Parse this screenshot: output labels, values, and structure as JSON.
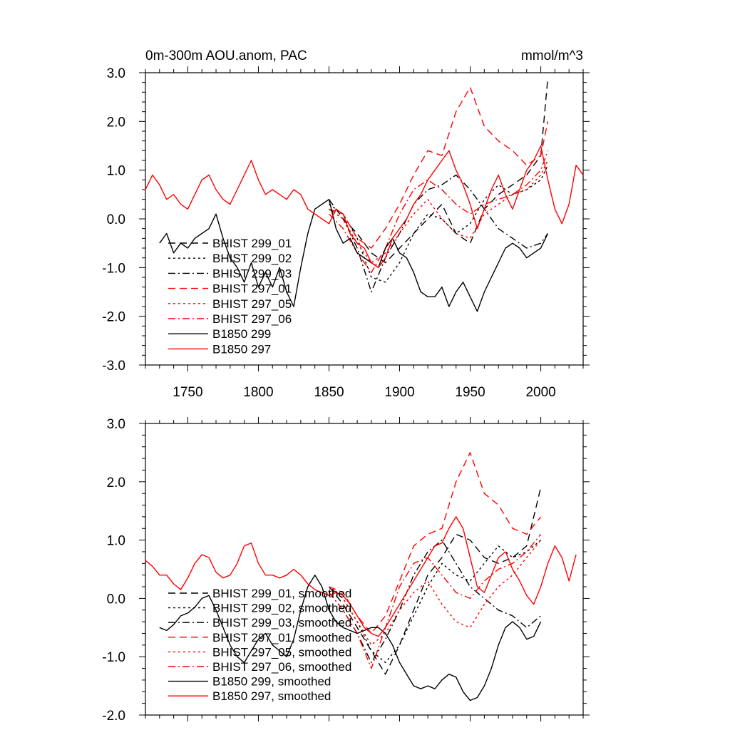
{
  "chart_data": [
    {
      "type": "line",
      "title": "0m-300m AOU.anom, PAC",
      "units_label": "mmol/m^3",
      "xlim": [
        1720,
        2030
      ],
      "ylim": [
        -3.0,
        3.0
      ],
      "xticks": [
        1750,
        1800,
        1850,
        1900,
        1950,
        2000
      ],
      "xtick_labels": [
        "1750",
        "1800",
        "1850",
        "1900",
        "1950",
        "2000"
      ],
      "yticks": [
        -3.0,
        -2.0,
        -1.0,
        0.0,
        1.0,
        2.0,
        3.0
      ],
      "ytick_labels": [
        "-3.0",
        "-2.0",
        "-1.0",
        "0.0",
        "1.0",
        "2.0",
        "3.0"
      ],
      "legend_placement": "lower-left",
      "series": [
        {
          "name": "BHIST 299_01",
          "color": "#000000",
          "dash": "dash",
          "x": [
            1850,
            1860,
            1870,
            1880,
            1890,
            1900,
            1910,
            1920,
            1930,
            1940,
            1950,
            1960,
            1970,
            1980,
            1990,
            2000,
            2005
          ],
          "y": [
            0.4,
            0.0,
            -0.3,
            -0.7,
            -0.9,
            -0.6,
            -0.3,
            0.0,
            0.3,
            -0.3,
            -0.5,
            0.2,
            0.5,
            0.7,
            0.9,
            1.3,
            2.9
          ]
        },
        {
          "name": "BHIST 299_02",
          "color": "#000000",
          "dash": "dot",
          "x": [
            1850,
            1860,
            1870,
            1880,
            1890,
            1900,
            1910,
            1920,
            1930,
            1940,
            1950,
            1960,
            1970,
            1980,
            1990,
            2000,
            2005
          ],
          "y": [
            0.3,
            0.1,
            -0.4,
            -1.2,
            -1.3,
            -0.9,
            -0.3,
            0.1,
            0.0,
            -0.3,
            -0.1,
            0.4,
            0.7,
            0.5,
            0.6,
            0.8,
            1.1
          ]
        },
        {
          "name": "BHIST 299_03",
          "color": "#000000",
          "dash": "dashdot",
          "x": [
            1850,
            1860,
            1870,
            1880,
            1890,
            1900,
            1910,
            1920,
            1930,
            1940,
            1950,
            1960,
            1970,
            1980,
            1990,
            2000,
            2005
          ],
          "y": [
            0.2,
            0.0,
            -0.6,
            -1.5,
            -0.8,
            -0.3,
            0.3,
            0.6,
            0.7,
            0.9,
            0.6,
            0.2,
            -0.2,
            -0.4,
            -0.6,
            -0.5,
            -0.3
          ]
        },
        {
          "name": "BHIST 297_01",
          "color": "#ff0000",
          "dash": "dash",
          "x": [
            1850,
            1860,
            1870,
            1880,
            1890,
            1900,
            1910,
            1920,
            1930,
            1940,
            1950,
            1960,
            1970,
            1980,
            1990,
            2000,
            2005
          ],
          "y": [
            0.2,
            0.1,
            -0.4,
            -0.6,
            -0.2,
            0.3,
            0.9,
            1.4,
            1.3,
            2.2,
            2.7,
            1.9,
            1.6,
            1.4,
            1.1,
            1.3,
            2.0
          ]
        },
        {
          "name": "BHIST 297_05",
          "color": "#ff0000",
          "dash": "dot",
          "x": [
            1850,
            1860,
            1870,
            1880,
            1890,
            1900,
            1910,
            1920,
            1930,
            1940,
            1950,
            1960,
            1970,
            1980,
            1990,
            2000,
            2005
          ],
          "y": [
            0.2,
            0.0,
            -0.5,
            -0.9,
            -0.7,
            -0.3,
            0.1,
            0.4,
            0.0,
            -0.3,
            -0.4,
            0.1,
            0.3,
            0.5,
            0.6,
            0.9,
            1.2
          ]
        },
        {
          "name": "BHIST 297_06",
          "color": "#ff0000",
          "dash": "dashdot",
          "x": [
            1850,
            1860,
            1870,
            1880,
            1890,
            1900,
            1910,
            1920,
            1930,
            1940,
            1950,
            1960,
            1970,
            1980,
            1990,
            2000,
            2005
          ],
          "y": [
            0.1,
            -0.2,
            -0.7,
            -1.1,
            -0.6,
            0.1,
            0.6,
            0.8,
            0.6,
            0.3,
            0.1,
            0.3,
            0.4,
            0.5,
            0.7,
            1.0,
            1.4
          ]
        },
        {
          "name": "B1850 299",
          "color": "#000000",
          "dash": "solid",
          "x": [
            1730,
            1735,
            1740,
            1745,
            1750,
            1755,
            1760,
            1765,
            1770,
            1775,
            1780,
            1785,
            1790,
            1795,
            1800,
            1805,
            1810,
            1815,
            1820,
            1825,
            1830,
            1835,
            1840,
            1845,
            1850,
            1855,
            1860,
            1865,
            1870,
            1875,
            1880,
            1885,
            1890,
            1895,
            1900,
            1905,
            1910,
            1915,
            1920,
            1925,
            1930,
            1935,
            1940,
            1945,
            1950,
            1955,
            1960,
            1965,
            1970,
            1975,
            1980,
            1985,
            1990,
            1995,
            2000,
            2005
          ],
          "y": [
            -0.5,
            -0.3,
            -0.7,
            -0.5,
            -0.6,
            -0.4,
            -0.3,
            -0.2,
            0.1,
            -0.4,
            -0.8,
            -1.0,
            -1.3,
            -0.9,
            -1.4,
            -1.1,
            -1.4,
            -1.0,
            -1.5,
            -1.8,
            -1.0,
            -0.3,
            0.2,
            0.3,
            0.4,
            -0.2,
            -0.5,
            -0.4,
            -0.7,
            -0.8,
            -0.9,
            -1.0,
            -0.6,
            -0.4,
            -0.7,
            -0.8,
            -1.1,
            -1.5,
            -1.6,
            -1.6,
            -1.4,
            -1.8,
            -1.5,
            -1.3,
            -1.6,
            -1.9,
            -1.5,
            -1.2,
            -0.9,
            -0.6,
            -0.5,
            -0.6,
            -0.8,
            -0.7,
            -0.6,
            -0.3
          ]
        },
        {
          "name": "B1850 297",
          "color": "#ff0000",
          "dash": "solid",
          "x": [
            1720,
            1725,
            1730,
            1735,
            1740,
            1745,
            1750,
            1755,
            1760,
            1765,
            1770,
            1775,
            1780,
            1785,
            1790,
            1795,
            1800,
            1805,
            1810,
            1815,
            1820,
            1825,
            1830,
            1835,
            1840,
            1845,
            1850,
            1855,
            1860,
            1865,
            1870,
            1875,
            1880,
            1885,
            1890,
            1895,
            1900,
            1905,
            1910,
            1915,
            1920,
            1925,
            1930,
            1935,
            1940,
            1945,
            1950,
            1955,
            1960,
            1965,
            1970,
            1975,
            1980,
            1985,
            1990,
            1995,
            2000,
            2005,
            2010,
            2015,
            2020,
            2025,
            2030
          ],
          "y": [
            0.6,
            0.9,
            0.7,
            0.4,
            0.5,
            0.3,
            0.2,
            0.5,
            0.8,
            0.9,
            0.6,
            0.4,
            0.3,
            0.6,
            0.9,
            1.2,
            0.8,
            0.5,
            0.6,
            0.5,
            0.4,
            0.6,
            0.5,
            0.2,
            0.1,
            0.0,
            -0.1,
            0.2,
            0.1,
            -0.3,
            -0.5,
            -0.6,
            -0.9,
            -1.0,
            -0.8,
            -0.4,
            -0.2,
            0.0,
            0.3,
            0.5,
            0.8,
            1.0,
            1.2,
            1.4,
            1.0,
            0.7,
            0.3,
            -0.2,
            0.2,
            0.6,
            0.9,
            0.5,
            0.2,
            0.6,
            1.0,
            1.2,
            1.5,
            0.8,
            0.2,
            -0.1,
            0.3,
            1.1,
            0.9
          ]
        }
      ]
    },
    {
      "type": "line",
      "xlim": [
        1720,
        2030
      ],
      "ylim": [
        -2.0,
        3.0
      ],
      "xticks": [
        1750,
        1800,
        1850,
        1900,
        1950,
        2000
      ],
      "yticks": [
        -2.0,
        -1.0,
        0.0,
        1.0,
        2.0,
        3.0
      ],
      "ytick_labels": [
        "-2.0",
        "-1.0",
        "0.0",
        "1.0",
        "2.0",
        "3.0"
      ],
      "legend_placement": "lower-left",
      "series": [
        {
          "name": "BHIST 299_01, smoothed",
          "color": "#000000",
          "dash": "dash",
          "x": [
            1850,
            1860,
            1870,
            1880,
            1890,
            1900,
            1910,
            1920,
            1930,
            1940,
            1950,
            1960,
            1970,
            1980,
            1990,
            2000
          ],
          "y": [
            0.2,
            -0.1,
            -0.5,
            -0.9,
            -1.3,
            -0.8,
            -0.2,
            0.4,
            0.7,
            1.1,
            1.0,
            0.7,
            0.6,
            0.7,
            0.9,
            1.9
          ]
        },
        {
          "name": "BHIST 299_02, smoothed",
          "color": "#000000",
          "dash": "dot",
          "x": [
            1850,
            1860,
            1870,
            1880,
            1890,
            1900,
            1910,
            1920,
            1930,
            1940,
            1950,
            1960,
            1970,
            1980,
            1990,
            2000
          ],
          "y": [
            0.2,
            0.0,
            -0.4,
            -0.9,
            -1.1,
            -0.8,
            -0.3,
            0.2,
            0.6,
            0.4,
            0.3,
            0.6,
            0.9,
            0.7,
            0.8,
            1.0
          ]
        },
        {
          "name": "BHIST 299_03, smoothed",
          "color": "#000000",
          "dash": "dashdot",
          "x": [
            1850,
            1860,
            1870,
            1880,
            1890,
            1900,
            1910,
            1920,
            1930,
            1940,
            1950,
            1960,
            1970,
            1980,
            1990,
            2000
          ],
          "y": [
            0.1,
            -0.2,
            -0.6,
            -1.1,
            -0.7,
            -0.2,
            0.4,
            0.8,
            1.0,
            0.6,
            0.2,
            0.0,
            -0.2,
            -0.3,
            -0.5,
            -0.3
          ]
        },
        {
          "name": "BHIST 297_01, smoothed",
          "color": "#ff0000",
          "dash": "dash",
          "x": [
            1850,
            1860,
            1870,
            1880,
            1890,
            1900,
            1910,
            1920,
            1930,
            1940,
            1950,
            1960,
            1970,
            1980,
            1990,
            2000
          ],
          "y": [
            0.2,
            0.1,
            -0.3,
            -0.6,
            -0.3,
            0.3,
            0.9,
            1.1,
            1.2,
            2.0,
            2.5,
            1.8,
            1.6,
            1.2,
            1.1,
            1.4
          ]
        },
        {
          "name": "BHIST 297_05, smoothed",
          "color": "#ff0000",
          "dash": "dot",
          "x": [
            1850,
            1860,
            1870,
            1880,
            1890,
            1900,
            1910,
            1920,
            1930,
            1940,
            1950,
            1960,
            1970,
            1980,
            1990,
            2000
          ],
          "y": [
            0.2,
            0.0,
            -0.4,
            -0.8,
            -0.6,
            -0.2,
            0.1,
            0.3,
            -0.1,
            -0.4,
            -0.5,
            -0.1,
            0.2,
            0.4,
            0.7,
            1.0
          ]
        },
        {
          "name": "BHIST 297_06, smoothed",
          "color": "#ff0000",
          "dash": "dashdot",
          "x": [
            1850,
            1860,
            1870,
            1880,
            1890,
            1900,
            1910,
            1920,
            1930,
            1940,
            1950,
            1960,
            1970,
            1980,
            1990,
            2000
          ],
          "y": [
            0.1,
            -0.2,
            -0.6,
            -1.2,
            -0.5,
            0.2,
            0.6,
            0.7,
            0.4,
            0.1,
            0.0,
            0.3,
            0.5,
            0.6,
            0.8,
            1.1
          ]
        },
        {
          "name": "B1850 299, smoothed",
          "color": "#000000",
          "dash": "solid",
          "x": [
            1730,
            1735,
            1740,
            1745,
            1750,
            1755,
            1760,
            1765,
            1770,
            1775,
            1780,
            1785,
            1790,
            1795,
            1800,
            1805,
            1810,
            1815,
            1820,
            1825,
            1830,
            1835,
            1840,
            1845,
            1850,
            1855,
            1860,
            1865,
            1870,
            1875,
            1880,
            1885,
            1890,
            1895,
            1900,
            1905,
            1910,
            1915,
            1920,
            1925,
            1930,
            1935,
            1940,
            1945,
            1950,
            1955,
            1960,
            1965,
            1970,
            1975,
            1980,
            1985,
            1990,
            1995,
            2000
          ],
          "y": [
            -0.5,
            -0.55,
            -0.45,
            -0.3,
            -0.25,
            -0.15,
            0.0,
            0.05,
            -0.2,
            -0.5,
            -0.8,
            -1.0,
            -1.1,
            -0.9,
            -0.7,
            -0.6,
            -0.8,
            -0.9,
            -1.0,
            -0.7,
            -0.2,
            0.2,
            0.4,
            0.2,
            -0.2,
            -0.4,
            -0.5,
            -0.55,
            -0.6,
            -0.55,
            -0.5,
            -0.5,
            -0.6,
            -0.8,
            -1.1,
            -1.3,
            -1.5,
            -1.55,
            -1.5,
            -1.55,
            -1.4,
            -1.3,
            -1.35,
            -1.6,
            -1.75,
            -1.7,
            -1.5,
            -1.2,
            -0.8,
            -0.5,
            -0.4,
            -0.5,
            -0.7,
            -0.65,
            -0.4
          ]
        },
        {
          "name": "B1850 297, smoothed",
          "color": "#ff0000",
          "dash": "solid",
          "x": [
            1720,
            1725,
            1730,
            1735,
            1740,
            1745,
            1750,
            1755,
            1760,
            1765,
            1770,
            1775,
            1780,
            1785,
            1790,
            1795,
            1800,
            1805,
            1810,
            1815,
            1820,
            1825,
            1830,
            1835,
            1840,
            1845,
            1850,
            1855,
            1860,
            1865,
            1870,
            1875,
            1880,
            1885,
            1890,
            1895,
            1900,
            1905,
            1910,
            1915,
            1920,
            1925,
            1930,
            1935,
            1940,
            1945,
            1950,
            1955,
            1960,
            1965,
            1970,
            1975,
            1980,
            1985,
            1990,
            1995,
            2000,
            2005,
            2010,
            2015,
            2020,
            2025
          ],
          "y": [
            0.65,
            0.55,
            0.4,
            0.4,
            0.25,
            0.15,
            0.35,
            0.6,
            0.75,
            0.7,
            0.45,
            0.35,
            0.4,
            0.6,
            0.9,
            0.95,
            0.6,
            0.4,
            0.4,
            0.35,
            0.4,
            0.5,
            0.4,
            0.25,
            0.15,
            0.1,
            0.05,
            0.1,
            0.05,
            -0.1,
            -0.3,
            -0.5,
            -0.6,
            -0.65,
            -0.5,
            -0.3,
            -0.1,
            0.1,
            0.3,
            0.5,
            0.7,
            0.9,
            0.95,
            1.2,
            1.4,
            1.2,
            0.7,
            0.2,
            0.1,
            0.4,
            0.7,
            0.8,
            0.5,
            0.3,
            0.05,
            -0.1,
            0.2,
            0.6,
            0.9,
            0.7,
            0.3,
            0.75
          ]
        }
      ]
    }
  ]
}
